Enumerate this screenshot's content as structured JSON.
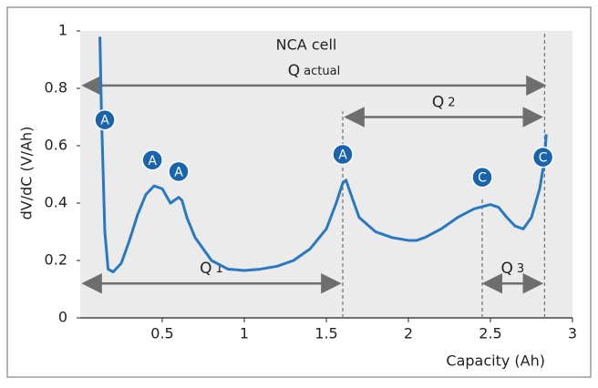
{
  "chart_data": {
    "type": "line",
    "title": "NCA cell",
    "x_label": "Capacity (Ah)",
    "y_label": "dV/dC (V/Ah)",
    "xlim": [
      0,
      3
    ],
    "ylim": [
      0,
      1
    ],
    "xticks": [
      0.5,
      1,
      1.5,
      2,
      2.5,
      3
    ],
    "yticks": [
      0,
      0.2,
      0.4,
      0.6,
      0.8,
      1
    ],
    "color": "#2a78c0",
    "x": [
      0.12,
      0.13,
      0.15,
      0.17,
      0.2,
      0.25,
      0.3,
      0.35,
      0.4,
      0.45,
      0.5,
      0.55,
      0.6,
      0.62,
      0.65,
      0.7,
      0.8,
      0.9,
      1.0,
      1.1,
      1.2,
      1.3,
      1.4,
      1.5,
      1.56,
      1.6,
      1.62,
      1.65,
      1.7,
      1.8,
      1.9,
      2.0,
      2.05,
      2.1,
      2.2,
      2.3,
      2.4,
      2.5,
      2.55,
      2.6,
      2.65,
      2.7,
      2.75,
      2.8,
      2.83,
      2.84
    ],
    "values": [
      0.98,
      0.7,
      0.3,
      0.17,
      0.16,
      0.19,
      0.27,
      0.36,
      0.43,
      0.46,
      0.45,
      0.4,
      0.42,
      0.41,
      0.35,
      0.28,
      0.2,
      0.17,
      0.165,
      0.17,
      0.18,
      0.2,
      0.24,
      0.31,
      0.4,
      0.47,
      0.48,
      0.43,
      0.35,
      0.3,
      0.28,
      0.27,
      0.27,
      0.28,
      0.31,
      0.35,
      0.38,
      0.395,
      0.385,
      0.35,
      0.32,
      0.31,
      0.35,
      0.45,
      0.55,
      0.64
    ],
    "reference_lines": [
      {
        "x": 1.6,
        "y1": 0,
        "y2": 0.72
      },
      {
        "x": 2.45,
        "y1": 0,
        "y2": 0.42
      },
      {
        "x": 2.83,
        "y1": 0,
        "y2": 1
      }
    ],
    "spans": [
      {
        "label": "Q",
        "sub": "actual",
        "from": 0.02,
        "to": 2.83,
        "y": 0.81
      },
      {
        "label": "Q",
        "sub": "2",
        "from": 1.62,
        "to": 2.81,
        "y": 0.7
      },
      {
        "label": "Q",
        "sub": "1",
        "from": 0.02,
        "to": 1.58,
        "y": 0.12
      },
      {
        "label": "Q",
        "sub": "3",
        "from": 2.46,
        "to": 2.81,
        "y": 0.12
      }
    ],
    "annotations": [
      {
        "text": "A",
        "x": 0.15,
        "y": 0.69
      },
      {
        "text": "A",
        "x": 0.44,
        "y": 0.55
      },
      {
        "text": "A",
        "x": 0.6,
        "y": 0.51
      },
      {
        "text": "A",
        "x": 1.6,
        "y": 0.57
      },
      {
        "text": "C",
        "x": 2.45,
        "y": 0.49
      },
      {
        "text": "C",
        "x": 2.82,
        "y": 0.56
      }
    ]
  }
}
